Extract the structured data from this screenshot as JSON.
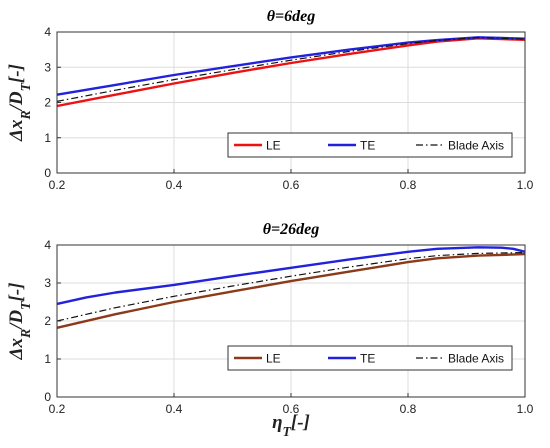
{
  "chart_data": [
    {
      "type": "line",
      "title": "θ=6deg",
      "ylabel": "Δx_R/D_T[-]",
      "xlabel": "",
      "xlim": [
        0.2,
        1.0
      ],
      "ylim": [
        0,
        4
      ],
      "xticks": [
        "0.2",
        "0.4",
        "0.6",
        "0.8",
        "1.0"
      ],
      "yticks": [
        "0",
        "1",
        "2",
        "3",
        "4"
      ],
      "grid": true,
      "legend": "bottom-right",
      "series": [
        {
          "name": "LE",
          "color": "#ee1111",
          "style": "solid",
          "x": [
            0.2,
            0.3,
            0.4,
            0.5,
            0.6,
            0.7,
            0.8,
            0.85,
            0.92,
            0.96,
            1.0
          ],
          "y": [
            1.9,
            2.22,
            2.54,
            2.84,
            3.12,
            3.38,
            3.62,
            3.73,
            3.82,
            3.8,
            3.78
          ]
        },
        {
          "name": "TE",
          "color": "#2222dd",
          "style": "solid",
          "x": [
            0.2,
            0.3,
            0.4,
            0.5,
            0.6,
            0.7,
            0.8,
            0.85,
            0.92,
            0.96,
            1.0
          ],
          "y": [
            2.22,
            2.5,
            2.78,
            3.03,
            3.28,
            3.5,
            3.7,
            3.77,
            3.85,
            3.83,
            3.81
          ]
        },
        {
          "name": "Blade Axis",
          "color": "#111111",
          "style": "dashdot",
          "x": [
            0.2,
            0.3,
            0.4,
            0.5,
            0.6,
            0.7,
            0.8,
            0.85,
            0.92,
            0.96,
            1.0
          ],
          "y": [
            2.03,
            2.35,
            2.65,
            2.93,
            3.2,
            3.45,
            3.67,
            3.76,
            3.84,
            3.82,
            3.8
          ]
        }
      ]
    },
    {
      "type": "line",
      "title": "θ=26deg",
      "ylabel": "Δx_R/D_T[-]",
      "xlabel": "η_T[-]",
      "xlim": [
        0.2,
        1.0
      ],
      "ylim": [
        0,
        4
      ],
      "xticks": [
        "0.2",
        "0.4",
        "0.6",
        "0.8",
        "1.0"
      ],
      "yticks": [
        "0",
        "1",
        "2",
        "3",
        "4"
      ],
      "grid": true,
      "legend": "bottom-right",
      "series": [
        {
          "name": "LE",
          "color": "#8b3a1a",
          "style": "solid",
          "x": [
            0.2,
            0.3,
            0.4,
            0.5,
            0.6,
            0.7,
            0.8,
            0.85,
            0.92,
            0.96,
            1.0
          ],
          "y": [
            1.82,
            2.18,
            2.5,
            2.78,
            3.05,
            3.3,
            3.55,
            3.65,
            3.72,
            3.74,
            3.76
          ]
        },
        {
          "name": "TE",
          "color": "#2222dd",
          "style": "solid",
          "x": [
            0.2,
            0.25,
            0.3,
            0.4,
            0.5,
            0.6,
            0.7,
            0.8,
            0.85,
            0.92,
            0.96,
            0.98,
            1.0
          ],
          "y": [
            2.45,
            2.62,
            2.75,
            2.95,
            3.18,
            3.4,
            3.62,
            3.82,
            3.9,
            3.94,
            3.93,
            3.9,
            3.82
          ]
        },
        {
          "name": "Blade Axis",
          "color": "#111111",
          "style": "dashdot",
          "x": [
            0.2,
            0.3,
            0.4,
            0.5,
            0.6,
            0.7,
            0.8,
            0.85,
            0.92,
            0.96,
            1.0
          ],
          "y": [
            2.0,
            2.35,
            2.65,
            2.92,
            3.18,
            3.42,
            3.64,
            3.72,
            3.78,
            3.79,
            3.8
          ]
        }
      ]
    }
  ]
}
